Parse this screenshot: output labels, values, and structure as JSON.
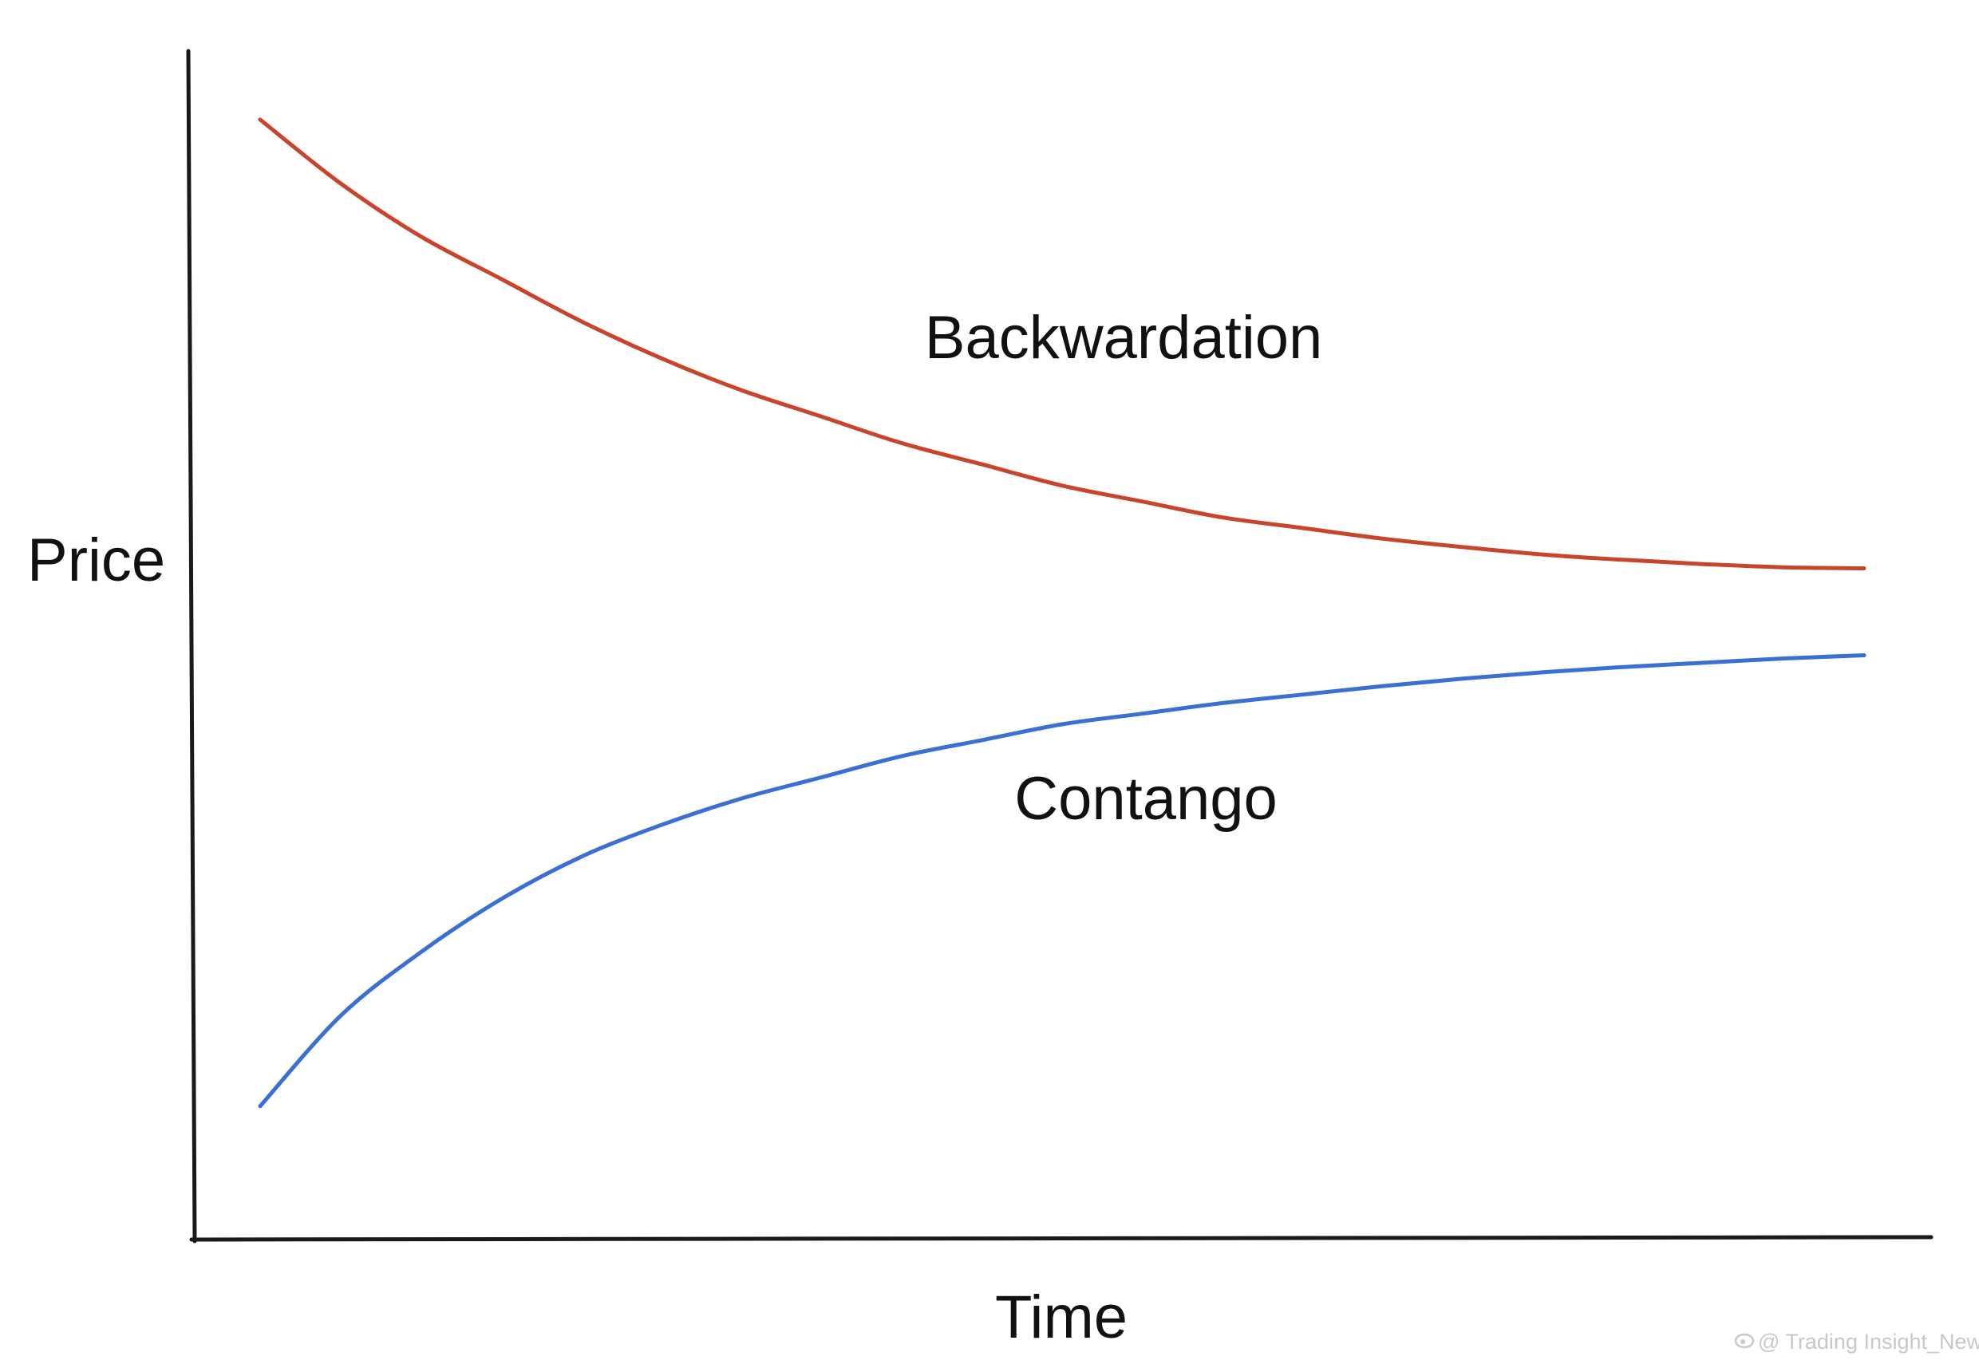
{
  "chart_data": {
    "type": "line",
    "title": "",
    "xlabel": "Time",
    "ylabel": "Price",
    "xlim": [
      0,
      1
    ],
    "ylim": [
      0,
      1
    ],
    "grid": false,
    "ticks": false,
    "series": [
      {
        "name": "Backwardation",
        "color": "#c8442b",
        "x": [
          0.0,
          0.05,
          0.1,
          0.15,
          0.2,
          0.25,
          0.3,
          0.35,
          0.4,
          0.45,
          0.5,
          0.55,
          0.6,
          0.65,
          0.7,
          0.75,
          0.8,
          0.85,
          0.9,
          0.95,
          1.0
        ],
        "y": [
          0.97,
          0.91,
          0.86,
          0.82,
          0.78,
          0.745,
          0.715,
          0.69,
          0.665,
          0.645,
          0.625,
          0.61,
          0.595,
          0.585,
          0.575,
          0.567,
          0.56,
          0.555,
          0.551,
          0.548,
          0.547
        ]
      },
      {
        "name": "Contango",
        "color": "#3a6fd4",
        "x": [
          0.0,
          0.05,
          0.1,
          0.15,
          0.2,
          0.25,
          0.3,
          0.35,
          0.4,
          0.45,
          0.5,
          0.55,
          0.6,
          0.65,
          0.7,
          0.75,
          0.8,
          0.85,
          0.9,
          0.95,
          1.0
        ],
        "y": [
          0.04,
          0.125,
          0.185,
          0.235,
          0.275,
          0.305,
          0.33,
          0.35,
          0.37,
          0.385,
          0.4,
          0.41,
          0.42,
          0.428,
          0.436,
          0.443,
          0.449,
          0.454,
          0.458,
          0.462,
          0.465
        ]
      }
    ]
  },
  "watermark": "@ Trading Insight_News",
  "watermark_icon": "weibo-icon"
}
